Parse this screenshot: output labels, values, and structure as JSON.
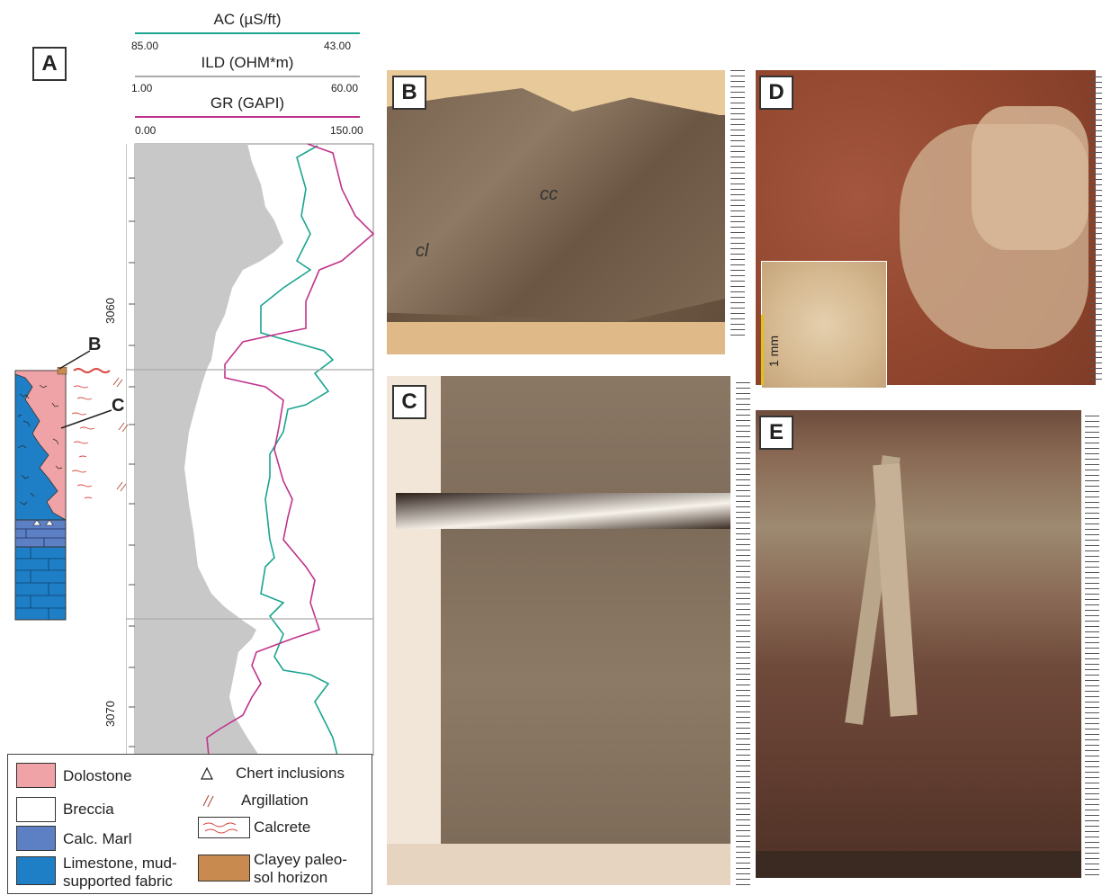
{
  "panels": {
    "a": "A",
    "b": "B",
    "c": "C",
    "d": "D",
    "e": "E"
  },
  "log_header": {
    "ac": {
      "title": "AC (µS/ft)",
      "left": "85.00",
      "right": "43.00",
      "color": "#1aa58f"
    },
    "ild": {
      "title": "ILD (OHM*m)",
      "left": "1.00",
      "right": "60.00",
      "color": "#9a9a9a"
    },
    "gr": {
      "title": "GR (GAPI)",
      "left": "0.00",
      "right": "150.00",
      "color": "#c0338a"
    }
  },
  "depths": {
    "d1": "3060",
    "d2": "3070"
  },
  "column_markers": {
    "b": "B",
    "c": "C"
  },
  "photo_labels": {
    "cc": "cc",
    "cl": "cl",
    "scale": "1 mm"
  },
  "legend": {
    "dolostone": "Dolostone",
    "breccia": "Breccia",
    "calc_marl": "Calc. Marl",
    "limestone_line1": "Limestone, mud-",
    "limestone_line2": "supported fabric",
    "chert": "Chert inclusions",
    "argillation": "Argillation",
    "calcrete": "Calcrete",
    "paleosol_line1": "Clayey paleo-",
    "paleosol_line2": "sol horizon"
  },
  "colors": {
    "dolostone": "#f0a3a6",
    "limestone": "#1f7fc6",
    "marl": "#5d7fc4",
    "paleosol": "#c98a50",
    "calcrete": "#d9473f"
  }
}
